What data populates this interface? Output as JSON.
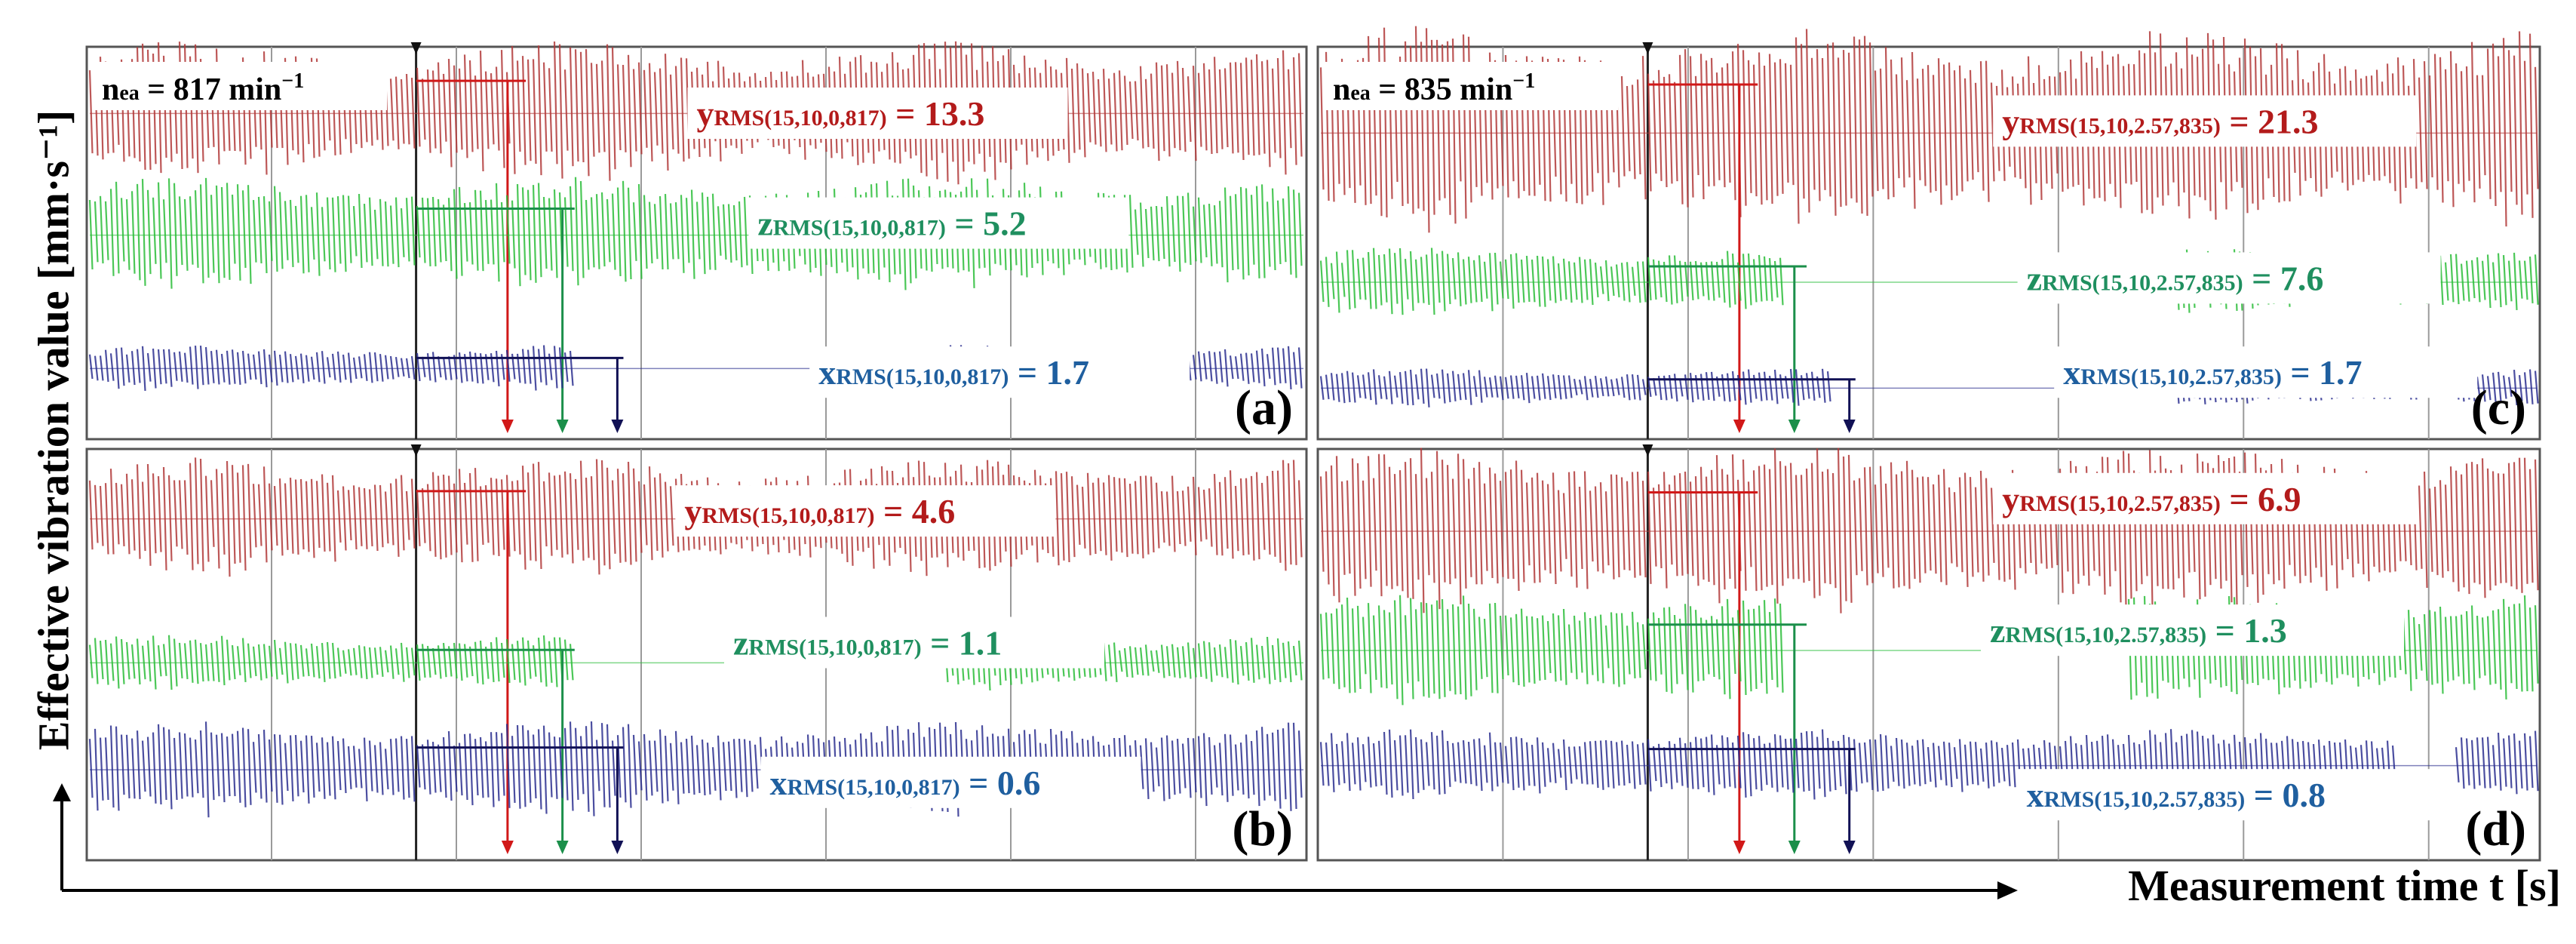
{
  "figure": {
    "ylabel": "Effective vibration value [mm·s⁻¹]",
    "xlabel": "Measurement time t [s]"
  },
  "colors": {
    "y": "#b23a3a",
    "z": "#2bbd3a",
    "x": "#2b2f8f",
    "y_text": "#b31b1b",
    "z_text": "#1f8f5f",
    "x_text": "#1f5f9f",
    "grid": "#9a9a9a"
  },
  "chart_data": [
    {
      "type": "line",
      "panel_label": "(a)",
      "speed_label": "n",
      "speed_sub": "ea",
      "speed_value": " = 817 min",
      "speed_unit_exp": "−1",
      "series": [
        {
          "name": "y",
          "label_main": "y",
          "label_sub": "RMS(15,10,0,817)",
          "label_value": " = 13.3",
          "value": 13.3,
          "gaps": []
        },
        {
          "name": "z",
          "label_main": "z",
          "label_sub": "RMS(15,10,0,817)",
          "label_value": " = 5.2",
          "value": 5.2,
          "gaps": []
        },
        {
          "name": "x",
          "label_main": "x",
          "label_sub": "RMS(15,10,0,817)",
          "label_value": " = 1.7",
          "value": 1.7,
          "gaps": [
            [
              0.4,
              0.7
            ]
          ]
        }
      ]
    },
    {
      "type": "line",
      "panel_label": "(c)",
      "speed_label": "n",
      "speed_sub": "ea",
      "speed_value": " = 835 min",
      "speed_unit_exp": "−1",
      "series": [
        {
          "name": "y",
          "label_main": "y",
          "label_sub": "RMS(15,10,2.57,835)",
          "label_value": " = 21.3",
          "value": 21.3,
          "gaps": []
        },
        {
          "name": "z",
          "label_main": "z",
          "label_sub": "RMS(15,10,2.57,835)",
          "label_value": " = 7.6",
          "value": 7.6,
          "gaps": [
            [
              0.38,
              0.7
            ]
          ]
        },
        {
          "name": "x",
          "label_main": "x",
          "label_sub": "RMS(15,10,2.57,835)",
          "label_value": " = 1.7",
          "value": 1.7,
          "gaps": [
            [
              0.42,
              0.7
            ],
            [
              0.9,
              0.93
            ]
          ]
        }
      ]
    },
    {
      "type": "line",
      "panel_label": "(b)",
      "series": [
        {
          "name": "y",
          "label_main": "y",
          "label_sub": "RMS(15,10,0,817)",
          "label_value": " = 4.6",
          "value": 4.6,
          "gaps": []
        },
        {
          "name": "z",
          "label_main": "z",
          "label_sub": "RMS(15,10,0,817)",
          "label_value": " = 1.1",
          "value": 1.1,
          "gaps": [
            [
              0.4,
              0.7
            ]
          ]
        },
        {
          "name": "x",
          "label_main": "x",
          "label_sub": "RMS(15,10,0,817)",
          "label_value": " = 0.6",
          "value": 0.6,
          "gaps": []
        }
      ]
    },
    {
      "type": "line",
      "panel_label": "(d)",
      "series": [
        {
          "name": "y",
          "label_main": "y",
          "label_sub": "RMS(15,10,2.57,835)",
          "label_value": " = 6.9",
          "value": 6.9,
          "gaps": []
        },
        {
          "name": "z",
          "label_main": "z",
          "label_sub": "RMS(15,10,2.57,835)",
          "label_value": " = 1.3",
          "value": 1.3,
          "gaps": [
            [
              0.38,
              0.66
            ]
          ]
        },
        {
          "name": "x",
          "label_main": "x",
          "label_sub": "RMS(15,10,2.57,835)",
          "label_value": " = 0.8",
          "value": 0.8,
          "gaps": [
            [
              0.88,
              0.93
            ]
          ]
        }
      ]
    }
  ]
}
